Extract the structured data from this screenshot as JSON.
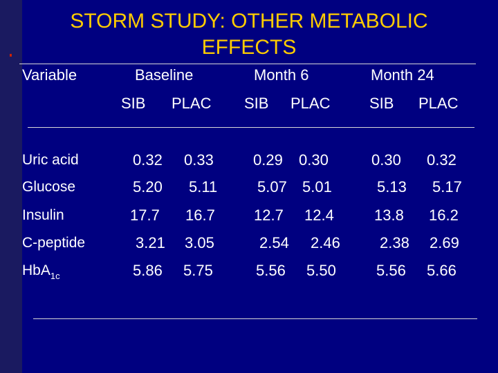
{
  "title": {
    "line1": "STORM STUDY: OTHER METABOLIC",
    "line2": "EFFECTS"
  },
  "header": {
    "variable": "Variable",
    "groups": [
      "Baseline",
      "Month 6",
      "Month 24"
    ],
    "subcols": [
      "SIB",
      "PLAC",
      "SIB",
      "PLAC",
      "SIB",
      "PLAC"
    ]
  },
  "rows": [
    {
      "label": "Uric acid",
      "values": [
        "0.32",
        "0.33",
        "0.29",
        "0.30",
        "0.30",
        "0.32"
      ]
    },
    {
      "label": "Glucose",
      "values": [
        "5.20",
        "5.11",
        "5.07",
        "5.01",
        "5.13",
        "5.17"
      ]
    },
    {
      "label": "Insulin",
      "values": [
        "17.7",
        "16.7",
        "12.7",
        "12.4",
        "13.8",
        "16.2"
      ]
    },
    {
      "label": "C-peptide",
      "values": [
        "3.21",
        "3.05",
        "2.54",
        "2.46",
        "2.38",
        "2.69"
      ]
    },
    {
      "label": "HbA",
      "label_sub": "1c",
      "values": [
        "5.86",
        "5.75",
        "5.56",
        "5.50",
        "5.56",
        "5.66"
      ]
    }
  ],
  "colors": {
    "background": "#000080",
    "title": "#ffcc00",
    "text": "#ffffff",
    "rule": "#d8d8d8"
  }
}
